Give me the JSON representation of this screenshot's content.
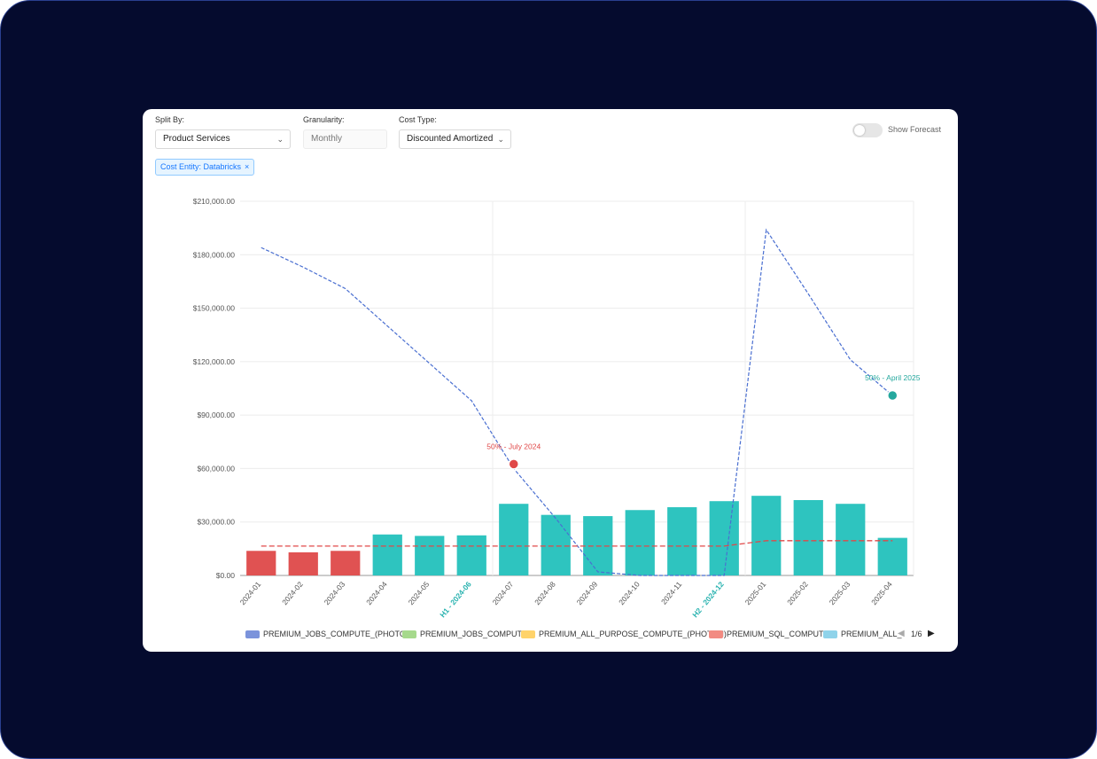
{
  "controls": {
    "split_by_label": "Split By:",
    "split_by_value": "Product Services",
    "granularity_label": "Granularity:",
    "granularity_value": "Monthly",
    "cost_type_label": "Cost Type:",
    "cost_type_value": "Discounted Amortized",
    "filter_tag": "Cost Entity: Databricks",
    "filter_tag_close": "×",
    "forecast_label": "Show Forecast",
    "dropdown_chevron": "⌄"
  },
  "colors": {
    "bar_red": "#e05252",
    "bar_teal": "#2ec4bf",
    "cumulative_line": "#4a6fd1",
    "average_line": "#e04848",
    "marker_red": "#e04848",
    "marker_teal": "#25a89e",
    "highlight_tick": "#2ab3b0"
  },
  "chart_data": {
    "type": "bar",
    "categories": [
      "2024-01",
      "2024-02",
      "2024-03",
      "2024-04",
      "2024-05",
      "2024-06",
      "2024-07",
      "2024-08",
      "2024-09",
      "2024-10",
      "2024-11",
      "2024-12",
      "2025-01",
      "2025-02",
      "2025-03",
      "2025-04"
    ],
    "category_labels": [
      "2024-01",
      "2024-02",
      "2024-03",
      "2024-04",
      "2024-05",
      "H1 - 2024-06",
      "2024-07",
      "2024-08",
      "2024-09",
      "2024-10",
      "2024-11",
      "H2 - 2024-12",
      "2025-01",
      "2025-02",
      "2025-03",
      "2025-04"
    ],
    "highlighted_categories": [
      "H1 - 2024-06",
      "H2 - 2024-12"
    ],
    "values": [
      13800,
      13000,
      13800,
      23000,
      22200,
      22500,
      40200,
      34000,
      33300,
      36700,
      38300,
      41700,
      44700,
      42300,
      40200,
      21100
    ],
    "bar_colors": [
      "#e05252",
      "#e05252",
      "#e05252",
      "#2ec4bf",
      "#2ec4bf",
      "#2ec4bf",
      "#2ec4bf",
      "#2ec4bf",
      "#2ec4bf",
      "#2ec4bf",
      "#2ec4bf",
      "#2ec4bf",
      "#2ec4bf",
      "#2ec4bf",
      "#2ec4bf",
      "#2ec4bf"
    ],
    "series": [
      {
        "values": [
          184000,
          173000,
          161000,
          140000,
          119000,
          98000,
          60000,
          32000,
          2000,
          0,
          0,
          0,
          194000,
          158000,
          121000,
          101000
        ],
        "style": "dashed",
        "color": "#4a6fd1"
      },
      {
        "values": [
          16500,
          16500,
          16500,
          16500,
          16500,
          16500,
          16500,
          16500,
          16500,
          16500,
          16500,
          16500,
          19500,
          19500,
          19500,
          19500
        ],
        "style": "dashed",
        "color": "#e04848"
      }
    ],
    "markers": [
      {
        "x_after": "2024-06",
        "y": 62500,
        "label": "50% - July 2024",
        "color": "#e04848"
      },
      {
        "x": "2025-04",
        "y": 101000,
        "label": "50% - April 2025",
        "color": "#25a89e"
      }
    ],
    "yticks": [
      "$0.00",
      "$30,000.00",
      "$60,000.00",
      "$90,000.00",
      "$120,000.00",
      "$150,000.00",
      "$180,000.00",
      "$210,000.00"
    ],
    "ylim": [
      0,
      210000
    ],
    "vertical_gridlines_at": [
      "2024-06",
      "2024-12"
    ],
    "grid": true,
    "legend": [
      {
        "label": "PREMIUM_JOBS_COMPUTE_(PHOTON)",
        "color": "#7b93db"
      },
      {
        "label": "PREMIUM_JOBS_COMPUTE",
        "color": "#a6d98c"
      },
      {
        "label": "PREMIUM_ALL_PURPOSE_COMPUTE_(PHOTON)",
        "color": "#ffd36b"
      },
      {
        "label": "PREMIUM_SQL_COMPUTE",
        "color": "#f28b82"
      },
      {
        "label": "PREMIUM_ALL_",
        "color": "#8fd3ea"
      }
    ],
    "legend_position": "bottom",
    "legend_page": "1/6",
    "legend_prev": "◀",
    "legend_next": "▶"
  }
}
